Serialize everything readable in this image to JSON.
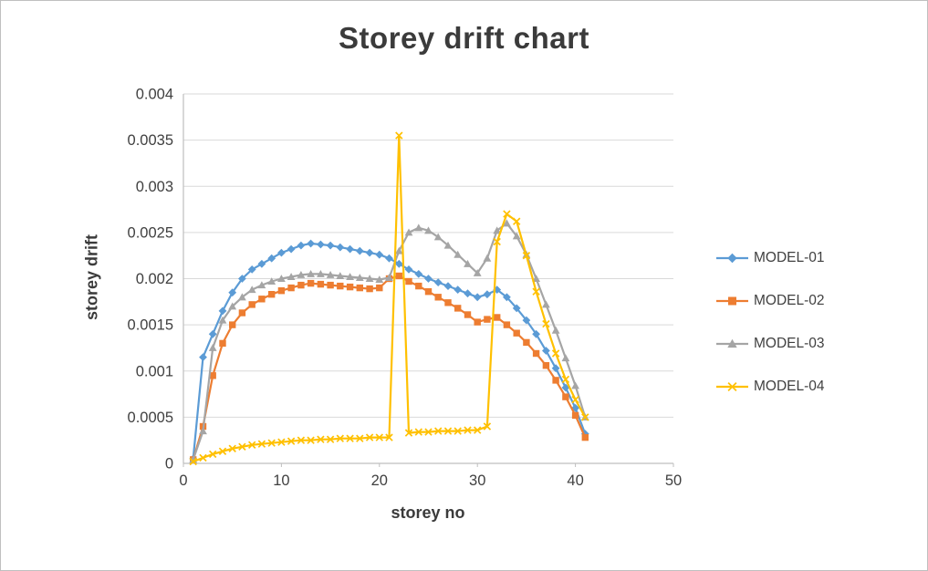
{
  "chart_data": {
    "type": "line",
    "title": "Storey drift chart",
    "xlabel": "storey no",
    "ylabel": "storey drift",
    "xlim": [
      0,
      50
    ],
    "ylim": [
      0,
      0.004
    ],
    "x_ticks": [
      0,
      10,
      20,
      30,
      40,
      50
    ],
    "y_ticks": [
      0,
      0.0005,
      0.001,
      0.0015,
      0.002,
      0.0025,
      0.003,
      0.0035,
      0.004
    ],
    "grid": "horizontal",
    "legend_position": "right",
    "x": [
      1,
      2,
      3,
      4,
      5,
      6,
      7,
      8,
      9,
      10,
      11,
      12,
      13,
      14,
      15,
      16,
      17,
      18,
      19,
      20,
      21,
      22,
      23,
      24,
      25,
      26,
      27,
      28,
      29,
      30,
      31,
      32,
      33,
      34,
      35,
      36,
      37,
      38,
      39,
      40,
      41
    ],
    "series": [
      {
        "name": "MODEL-01",
        "color": "#5B9BD5",
        "marker": "diamond",
        "values": [
          5e-05,
          0.00115,
          0.0014,
          0.00165,
          0.00185,
          0.002,
          0.0021,
          0.00216,
          0.00222,
          0.00228,
          0.00232,
          0.00236,
          0.00238,
          0.00237,
          0.00236,
          0.00234,
          0.00232,
          0.0023,
          0.00228,
          0.00226,
          0.00222,
          0.00216,
          0.0021,
          0.00205,
          0.002,
          0.00196,
          0.00192,
          0.00188,
          0.00184,
          0.0018,
          0.00183,
          0.00188,
          0.0018,
          0.00168,
          0.00155,
          0.0014,
          0.00122,
          0.00103,
          0.00082,
          0.0006,
          0.00032
        ]
      },
      {
        "name": "MODEL-02",
        "color": "#ED7D31",
        "marker": "square",
        "values": [
          4e-05,
          0.0004,
          0.00095,
          0.0013,
          0.0015,
          0.00163,
          0.00172,
          0.00178,
          0.00183,
          0.00187,
          0.0019,
          0.00193,
          0.00195,
          0.00194,
          0.00193,
          0.00192,
          0.00191,
          0.0019,
          0.00189,
          0.0019,
          0.002,
          0.00203,
          0.00197,
          0.00192,
          0.00186,
          0.0018,
          0.00174,
          0.00168,
          0.00161,
          0.00153,
          0.00156,
          0.00158,
          0.0015,
          0.00141,
          0.00131,
          0.00119,
          0.00106,
          0.0009,
          0.00072,
          0.00052,
          0.00028
        ]
      },
      {
        "name": "MODEL-03",
        "color": "#A5A5A5",
        "marker": "triangle",
        "values": [
          4e-05,
          0.00035,
          0.00125,
          0.00155,
          0.0017,
          0.0018,
          0.00188,
          0.00193,
          0.00197,
          0.002,
          0.00202,
          0.00204,
          0.00205,
          0.00205,
          0.00204,
          0.00203,
          0.00202,
          0.00201,
          0.002,
          0.00199,
          0.00201,
          0.0023,
          0.0025,
          0.00255,
          0.00252,
          0.00245,
          0.00236,
          0.00226,
          0.00216,
          0.00206,
          0.00222,
          0.00252,
          0.0026,
          0.00246,
          0.00226,
          0.002,
          0.00172,
          0.00144,
          0.00114,
          0.00084,
          0.0005
        ]
      },
      {
        "name": "MODEL-04",
        "color": "#FFC000",
        "marker": "x",
        "values": [
          2e-05,
          6e-05,
          0.0001,
          0.00013,
          0.00016,
          0.00018,
          0.0002,
          0.00021,
          0.00022,
          0.00023,
          0.00024,
          0.00025,
          0.00025,
          0.00026,
          0.00026,
          0.00027,
          0.00027,
          0.00027,
          0.00028,
          0.00028,
          0.00028,
          0.00355,
          0.00033,
          0.00034,
          0.00034,
          0.00035,
          0.00035,
          0.00035,
          0.00036,
          0.00036,
          0.0004,
          0.0024,
          0.0027,
          0.00262,
          0.00225,
          0.00186,
          0.00151,
          0.00119,
          0.00091,
          0.00069,
          0.0005
        ]
      }
    ]
  }
}
